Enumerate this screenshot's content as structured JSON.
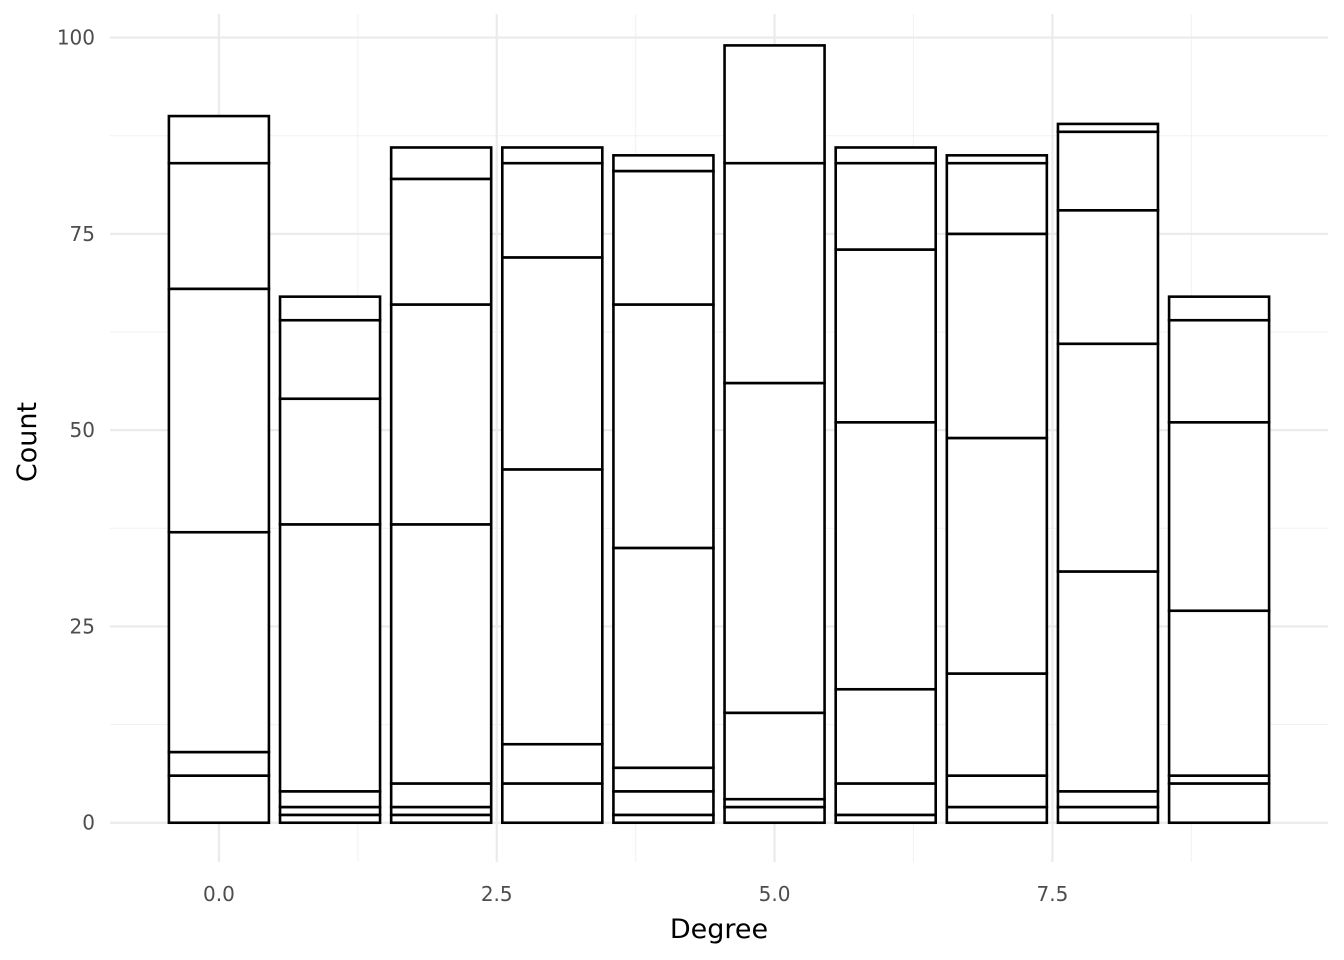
{
  "chart_data": {
    "type": "bar",
    "stacked": true,
    "xlabel": "Degree",
    "ylabel": "Count",
    "xlim": [
      -0.98,
      9.98
    ],
    "ylim": [
      -5,
      103
    ],
    "x_ticks": [
      0.0,
      2.5,
      5.0,
      7.5
    ],
    "x_tick_labels": [
      "0.0",
      "2.5",
      "5.0",
      "7.5"
    ],
    "y_ticks": [
      0,
      25,
      50,
      75,
      100
    ],
    "y_tick_labels": [
      "0",
      "25",
      "50",
      "75",
      "100"
    ],
    "grid": true,
    "bar_fill": "#ffffff",
    "bar_outline": "#000000",
    "bars": [
      {
        "x": 0,
        "stack_boundaries": [
          0,
          6,
          9,
          37,
          68,
          84,
          90
        ]
      },
      {
        "x": 1,
        "stack_boundaries": [
          0,
          1,
          2,
          4,
          38,
          54,
          64,
          67
        ]
      },
      {
        "x": 2,
        "stack_boundaries": [
          0,
          1,
          2,
          5,
          38,
          66,
          82,
          86
        ]
      },
      {
        "x": 3,
        "stack_boundaries": [
          0,
          5,
          10,
          45,
          72,
          84,
          86
        ]
      },
      {
        "x": 4,
        "stack_boundaries": [
          0,
          1,
          4,
          7,
          35,
          66,
          83,
          85
        ]
      },
      {
        "x": 5,
        "stack_boundaries": [
          0,
          2,
          3,
          14,
          56,
          84,
          99
        ]
      },
      {
        "x": 6,
        "stack_boundaries": [
          0,
          1,
          5,
          17,
          51,
          73,
          84,
          86
        ]
      },
      {
        "x": 7,
        "stack_boundaries": [
          0,
          2,
          6,
          19,
          49,
          75,
          84,
          85
        ]
      },
      {
        "x": 8,
        "stack_boundaries": [
          0,
          2,
          4,
          32,
          61,
          78,
          88,
          89
        ]
      },
      {
        "x": 9,
        "stack_boundaries": [
          0,
          5,
          6,
          27,
          51,
          64,
          67
        ]
      }
    ]
  }
}
